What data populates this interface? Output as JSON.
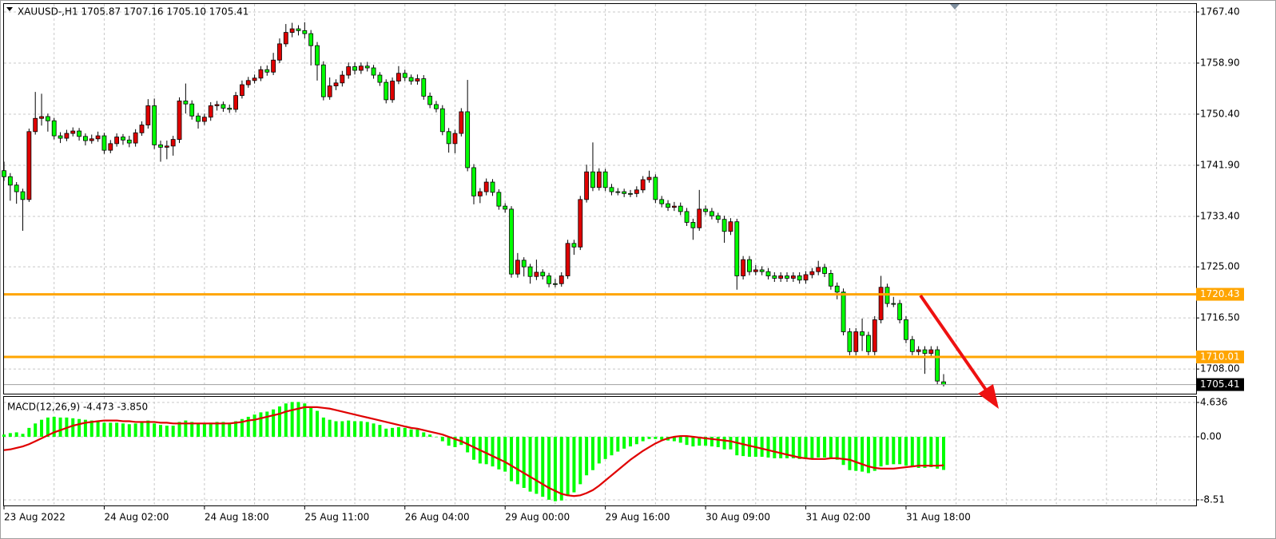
{
  "chart_data": [
    {
      "type": "candlestick",
      "title": "XAUUSD-,H1 1705.87 1707.16 1705.10 1705.41",
      "categories": [
        "23 Aug 2022",
        null,
        null,
        null,
        null,
        null,
        null,
        null,
        null,
        null,
        null,
        null,
        null,
        null,
        null,
        null,
        "24 Aug 02:00",
        null,
        null,
        null,
        null,
        null,
        null,
        null,
        null,
        null,
        null,
        null,
        null,
        null,
        null,
        null,
        "24 Aug 18:00",
        null,
        null,
        null,
        null,
        null,
        null,
        null,
        null,
        null,
        null,
        null,
        null,
        null,
        null,
        null,
        "25 Aug 11:00",
        null,
        null,
        null,
        null,
        null,
        null,
        null,
        null,
        null,
        null,
        null,
        null,
        null,
        null,
        null,
        "26 Aug 04:00",
        null,
        null,
        null,
        null,
        null,
        null,
        null,
        null,
        null,
        null,
        null,
        null,
        null,
        null,
        null,
        "29 Aug 00:00",
        null,
        null,
        null,
        null,
        null,
        null,
        null,
        null,
        null,
        null,
        null,
        null,
        null,
        null,
        null,
        "29 Aug 16:00",
        null,
        null,
        null,
        null,
        null,
        null,
        null,
        null,
        null,
        null,
        null,
        null,
        null,
        null,
        null,
        "30 Aug 09:00",
        null,
        null,
        null,
        null,
        null,
        null,
        null,
        null,
        null,
        null,
        null,
        null,
        null,
        null,
        null,
        "31 Aug 02:00",
        null,
        null,
        null,
        null,
        null,
        null,
        null,
        null,
        null,
        null,
        null,
        null,
        null,
        null,
        null,
        "31 Aug 18:00",
        null,
        null,
        null,
        null,
        null,
        null
      ],
      "open": [
        1741.0,
        1740.0,
        1738.6,
        1737.5,
        1736.2,
        1747.5,
        1749.7,
        1750.0,
        1749.3,
        1746.8,
        1746.4,
        1747.2,
        1747.6,
        1746.7,
        1746.0,
        1746.3,
        1746.8,
        1744.4,
        1745.5,
        1746.6,
        1746.1,
        1745.6,
        1747.3,
        1748.6,
        1751.8,
        1745.3,
        1744.9,
        1745.1,
        1746.2,
        1752.6,
        1752.1,
        1750.1,
        1749.2,
        1749.9,
        1751.8,
        1752.0,
        1751.4,
        1751.2,
        1753.5,
        1755.3,
        1756.0,
        1756.4,
        1757.8,
        1757.4,
        1759.4,
        1762.1,
        1764.0,
        1764.6,
        1764.3,
        1763.8,
        1761.8,
        1758.6,
        1753.3,
        1755.1,
        1755.6,
        1756.9,
        1758.3,
        1757.7,
        1758.4,
        1758.1,
        1756.9,
        1755.7,
        1752.8,
        1755.9,
        1757.2,
        1756.5,
        1755.9,
        1756.3,
        1753.4,
        1752.0,
        1751.3,
        1747.5,
        1745.5,
        1747.2,
        1750.8,
        1741.5,
        1736.8,
        1737.5,
        1739.1,
        1737.4,
        1735.1,
        1734.6,
        1723.8,
        1726.1,
        1725.0,
        1723.4,
        1724.1,
        1723.5,
        1722.2,
        1722.2,
        1723.5,
        1728.9,
        1728.3,
        1736.2,
        1740.8,
        1738.2,
        1740.8,
        1738.2,
        1737.5,
        1737.5,
        1737.2,
        1737.2,
        1737.8,
        1739.5,
        1739.9,
        1736.2,
        1735.5,
        1734.9,
        1735.1,
        1734.2,
        1732.4,
        1731.5,
        1734.6,
        1734.2,
        1733.5,
        1732.9,
        1730.9,
        1732.5,
        1723.5,
        1726.2,
        1724.2,
        1724.5,
        1724.2,
        1723.5,
        1723.1,
        1723.5,
        1723.1,
        1723.5,
        1722.8,
        1723.7,
        1724.2,
        1724.9,
        1723.9,
        1721.8,
        1720.8,
        1714.2,
        1710.9,
        1714.2,
        1713.6,
        1710.9,
        1716.2,
        1721.6,
        1718.9,
        1718.9,
        1716.2,
        1712.9,
        1710.9,
        1711.2,
        1710.6,
        1711.2,
        1705.87
      ],
      "high": [
        1742.5,
        1740.6,
        1739.1,
        1738.0,
        1748.0,
        1754.1,
        1753.8,
        1750.5,
        1749.8,
        1747.4,
        1747.8,
        1748.2,
        1748.1,
        1747.2,
        1747.0,
        1747.5,
        1747.3,
        1746.1,
        1747.2,
        1747.1,
        1746.8,
        1747.9,
        1749.2,
        1752.9,
        1753.0,
        1746.0,
        1746.0,
        1746.8,
        1753.2,
        1755.5,
        1752.7,
        1750.6,
        1750.5,
        1752.4,
        1752.6,
        1752.5,
        1752.0,
        1754.1,
        1756.0,
        1756.6,
        1757.0,
        1758.4,
        1758.5,
        1760.6,
        1763.0,
        1765.4,
        1765.6,
        1765.2,
        1765.7,
        1764.4,
        1762.4,
        1759.2,
        1756.5,
        1756.2,
        1757.6,
        1759.0,
        1759.0,
        1759.0,
        1759.1,
        1758.6,
        1757.4,
        1756.2,
        1756.5,
        1758.4,
        1757.8,
        1757.0,
        1757.0,
        1756.9,
        1754.0,
        1752.6,
        1751.9,
        1748.1,
        1747.8,
        1751.4,
        1756.1,
        1742.1,
        1738.1,
        1739.7,
        1739.6,
        1737.9,
        1735.6,
        1735.1,
        1727.3,
        1726.6,
        1725.5,
        1726.2,
        1724.6,
        1724.0,
        1723.0,
        1724.1,
        1729.5,
        1729.5,
        1736.8,
        1742.0,
        1745.7,
        1741.4,
        1741.3,
        1738.8,
        1738.1,
        1738.0,
        1737.8,
        1738.4,
        1740.1,
        1741.0,
        1740.4,
        1736.8,
        1736.1,
        1735.8,
        1735.7,
        1734.8,
        1733.0,
        1737.8,
        1735.2,
        1734.8,
        1734.0,
        1733.5,
        1733.1,
        1733.0,
        1726.8,
        1726.8,
        1725.3,
        1725.1,
        1724.8,
        1724.1,
        1724.1,
        1724.1,
        1724.1,
        1724.1,
        1724.3,
        1724.8,
        1726.0,
        1725.5,
        1724.5,
        1722.4,
        1721.4,
        1714.8,
        1714.8,
        1716.4,
        1714.2,
        1716.8,
        1723.5,
        1722.2,
        1720.0,
        1719.5,
        1716.8,
        1713.5,
        1711.8,
        1711.8,
        1711.8,
        1711.8,
        1707.16
      ],
      "low": [
        1739.3,
        1736.0,
        1735.5,
        1731.0,
        1735.8,
        1747.0,
        1748.5,
        1747.5,
        1746.2,
        1745.6,
        1745.9,
        1746.7,
        1746.0,
        1745.2,
        1745.5,
        1745.8,
        1743.8,
        1743.9,
        1745.0,
        1745.3,
        1744.9,
        1745.0,
        1746.8,
        1748.0,
        1744.6,
        1742.5,
        1742.9,
        1743.5,
        1745.6,
        1750.5,
        1749.5,
        1748.0,
        1748.6,
        1749.3,
        1751.0,
        1750.8,
        1750.6,
        1750.7,
        1753.0,
        1754.8,
        1755.5,
        1755.9,
        1756.8,
        1756.9,
        1758.9,
        1761.6,
        1763.2,
        1763.5,
        1763.0,
        1758.5,
        1756.0,
        1752.7,
        1752.8,
        1754.4,
        1755.0,
        1756.3,
        1757.0,
        1757.1,
        1757.5,
        1756.3,
        1755.1,
        1752.2,
        1752.3,
        1755.4,
        1755.9,
        1755.3,
        1755.3,
        1752.8,
        1751.4,
        1750.7,
        1746.9,
        1744.0,
        1743.9,
        1746.7,
        1740.9,
        1735.4,
        1735.6,
        1736.9,
        1736.8,
        1734.5,
        1734.0,
        1723.2,
        1723.2,
        1723.4,
        1722.2,
        1722.8,
        1722.9,
        1721.6,
        1721.6,
        1721.7,
        1723.0,
        1727.0,
        1727.8,
        1735.7,
        1737.6,
        1737.7,
        1737.6,
        1736.9,
        1736.9,
        1736.6,
        1736.6,
        1736.6,
        1737.3,
        1739.0,
        1735.6,
        1734.9,
        1734.3,
        1734.3,
        1733.6,
        1731.8,
        1729.5,
        1731.0,
        1733.6,
        1732.9,
        1732.3,
        1729.0,
        1730.3,
        1721.2,
        1722.9,
        1723.6,
        1723.6,
        1723.6,
        1722.9,
        1722.5,
        1722.5,
        1722.5,
        1722.5,
        1722.2,
        1722.2,
        1723.1,
        1723.6,
        1723.3,
        1721.2,
        1719.6,
        1713.6,
        1710.3,
        1710.3,
        1711.0,
        1710.3,
        1710.3,
        1715.6,
        1718.3,
        1718.3,
        1715.6,
        1712.3,
        1710.3,
        1710.3,
        1707.2,
        1710.0,
        1705.4,
        1705.1
      ],
      "close": [
        1740.0,
        1738.6,
        1737.5,
        1736.2,
        1747.5,
        1749.7,
        1750.0,
        1749.3,
        1746.8,
        1746.4,
        1747.2,
        1747.6,
        1746.7,
        1746.0,
        1746.3,
        1746.8,
        1744.4,
        1745.5,
        1746.6,
        1746.1,
        1745.6,
        1747.3,
        1748.6,
        1751.8,
        1745.3,
        1744.9,
        1745.1,
        1746.2,
        1752.6,
        1752.1,
        1750.1,
        1749.2,
        1749.9,
        1751.8,
        1752.0,
        1751.4,
        1751.2,
        1753.5,
        1755.3,
        1756.0,
        1756.4,
        1757.8,
        1757.4,
        1759.4,
        1762.1,
        1764.0,
        1764.6,
        1764.3,
        1763.8,
        1761.8,
        1758.6,
        1753.3,
        1755.1,
        1755.6,
        1756.9,
        1758.3,
        1757.7,
        1758.4,
        1758.1,
        1756.9,
        1755.7,
        1752.8,
        1755.9,
        1757.2,
        1756.5,
        1755.9,
        1756.3,
        1753.4,
        1752.0,
        1751.3,
        1747.5,
        1745.5,
        1747.2,
        1750.8,
        1741.5,
        1736.8,
        1737.5,
        1739.1,
        1737.4,
        1735.1,
        1734.6,
        1723.8,
        1726.1,
        1725.0,
        1723.4,
        1724.1,
        1723.5,
        1722.2,
        1722.2,
        1723.5,
        1728.9,
        1728.3,
        1736.2,
        1740.8,
        1738.2,
        1740.8,
        1738.2,
        1737.5,
        1737.5,
        1737.2,
        1737.2,
        1737.8,
        1739.5,
        1739.9,
        1736.2,
        1735.5,
        1734.9,
        1735.1,
        1734.2,
        1732.4,
        1731.5,
        1734.6,
        1734.2,
        1733.5,
        1732.9,
        1730.9,
        1732.5,
        1723.5,
        1726.2,
        1724.2,
        1724.5,
        1724.2,
        1723.5,
        1723.1,
        1723.5,
        1723.1,
        1723.5,
        1722.8,
        1723.7,
        1724.2,
        1724.9,
        1723.9,
        1721.8,
        1720.8,
        1714.2,
        1710.9,
        1714.2,
        1713.6,
        1710.9,
        1716.2,
        1721.6,
        1718.9,
        1718.9,
        1716.2,
        1712.9,
        1710.9,
        1711.2,
        1710.6,
        1711.2,
        1706.0,
        1705.41
      ],
      "up_color": "#e00000",
      "down_color": "#00ff00",
      "wick_color": "#000000",
      "ylim": [
        1703.9,
        1768.73
      ],
      "yticks": [
        {
          "value": 1767.4,
          "label": "1767.40"
        },
        {
          "value": 1758.9,
          "label": "1758.90"
        },
        {
          "value": 1750.4,
          "label": "1750.40"
        },
        {
          "value": 1741.9,
          "label": "1741.90"
        },
        {
          "value": 1733.4,
          "label": "1733.40"
        },
        {
          "value": 1725,
          "label": "1725.00"
        },
        {
          "value": 1716.5,
          "label": "1716.50"
        },
        {
          "value": 1708,
          "label": "1708.00"
        }
      ],
      "grid": true,
      "levels": [
        {
          "value": 1720.43,
          "label": "1720.43"
        },
        {
          "value": 1710.01,
          "label": "1710.01"
        }
      ],
      "level_color": "#ffa500",
      "last_price": {
        "value": 1705.41,
        "label": "1705.41"
      }
    },
    {
      "type": "macd",
      "title": "MACD(12,26,9) -4.473 -3.850",
      "histogram": {
        "color": "#00ff00",
        "values": [
          0.3,
          0.5,
          0.6,
          0.4,
          1.2,
          1.8,
          2.3,
          2.6,
          2.7,
          2.6,
          2.6,
          2.5,
          2.4,
          2.3,
          2.2,
          2.1,
          1.9,
          1.9,
          1.9,
          1.8,
          1.7,
          1.8,
          1.9,
          2.2,
          1.8,
          1.6,
          1.5,
          1.5,
          2.0,
          2.2,
          2.0,
          1.8,
          1.8,
          1.9,
          2.0,
          2.0,
          1.9,
          2.1,
          2.4,
          2.7,
          3.0,
          3.3,
          3.4,
          3.7,
          4.1,
          4.5,
          4.7,
          4.7,
          4.5,
          4.1,
          3.5,
          2.6,
          2.3,
          2.1,
          2.1,
          2.2,
          2.1,
          2.1,
          2.0,
          1.8,
          1.6,
          1.1,
          1.2,
          1.3,
          1.2,
          1.0,
          1.0,
          0.6,
          0.3,
          0.0,
          -0.6,
          -1.2,
          -1.4,
          -1.1,
          -2.1,
          -3.1,
          -3.6,
          -3.7,
          -4.0,
          -4.4,
          -4.7,
          -6.0,
          -6.4,
          -6.9,
          -7.4,
          -7.7,
          -8.1,
          -8.5,
          -8.7,
          -8.6,
          -8.0,
          -7.5,
          -6.4,
          -5.2,
          -4.5,
          -3.6,
          -3.0,
          -2.5,
          -2.0,
          -1.6,
          -1.3,
          -1.0,
          -0.6,
          -0.3,
          -0.3,
          -0.4,
          -0.5,
          -0.6,
          -0.8,
          -1.1,
          -1.3,
          -1.2,
          -1.2,
          -1.3,
          -1.4,
          -1.7,
          -1.7,
          -2.5,
          -2.6,
          -2.7,
          -2.7,
          -2.7,
          -2.8,
          -2.9,
          -2.9,
          -2.9,
          -2.9,
          -3.0,
          -3.0,
          -2.9,
          -2.8,
          -2.8,
          -3.0,
          -3.1,
          -3.8,
          -4.5,
          -4.6,
          -4.7,
          -4.9,
          -4.6,
          -4.0,
          -3.8,
          -3.7,
          -3.7,
          -3.9,
          -4.1,
          -4.2,
          -4.2,
          -4.1,
          -4.3,
          -4.473
        ]
      },
      "signal": {
        "color": "#e00000",
        "values": [
          -1.8,
          -1.7,
          -1.5,
          -1.3,
          -1.0,
          -0.6,
          -0.2,
          0.2,
          0.6,
          0.9,
          1.2,
          1.5,
          1.7,
          1.9,
          2.0,
          2.1,
          2.2,
          2.2,
          2.2,
          2.1,
          2.1,
          2.0,
          2.0,
          2.0,
          2.0,
          1.9,
          1.9,
          1.8,
          1.8,
          1.8,
          1.8,
          1.8,
          1.8,
          1.8,
          1.8,
          1.8,
          1.8,
          1.9,
          2.0,
          2.2,
          2.3,
          2.5,
          2.7,
          2.9,
          3.1,
          3.4,
          3.6,
          3.8,
          4.0,
          4.0,
          4.0,
          3.9,
          3.8,
          3.6,
          3.4,
          3.2,
          3.0,
          2.8,
          2.6,
          2.4,
          2.2,
          2.0,
          1.8,
          1.6,
          1.4,
          1.2,
          1.1,
          0.9,
          0.7,
          0.5,
          0.3,
          0.0,
          -0.3,
          -0.6,
          -1.0,
          -1.4,
          -1.8,
          -2.2,
          -2.6,
          -3.0,
          -3.4,
          -3.9,
          -4.4,
          -4.9,
          -5.4,
          -5.9,
          -6.4,
          -6.9,
          -7.3,
          -7.7,
          -7.9,
          -8.0,
          -7.9,
          -7.6,
          -7.2,
          -6.6,
          -5.9,
          -5.2,
          -4.5,
          -3.8,
          -3.1,
          -2.5,
          -1.9,
          -1.4,
          -0.9,
          -0.5,
          -0.2,
          0.0,
          0.1,
          0.1,
          0.0,
          -0.1,
          -0.2,
          -0.3,
          -0.4,
          -0.5,
          -0.6,
          -0.8,
          -1.0,
          -1.2,
          -1.4,
          -1.6,
          -1.8,
          -2.0,
          -2.2,
          -2.4,
          -2.6,
          -2.8,
          -2.9,
          -3.0,
          -3.0,
          -3.0,
          -2.9,
          -2.9,
          -3.0,
          -3.1,
          -3.4,
          -3.7,
          -4.0,
          -4.2,
          -4.3,
          -4.3,
          -4.3,
          -4.2,
          -4.1,
          -4.0,
          -3.9,
          -3.9,
          -3.9,
          -3.9,
          -3.85
        ]
      },
      "ylim": [
        -9.27,
        5.39
      ],
      "yticks": [
        4.636,
        {
          "value": 0,
          "label": "0.00"
        },
        -8.51
      ],
      "grid": true
    }
  ]
}
